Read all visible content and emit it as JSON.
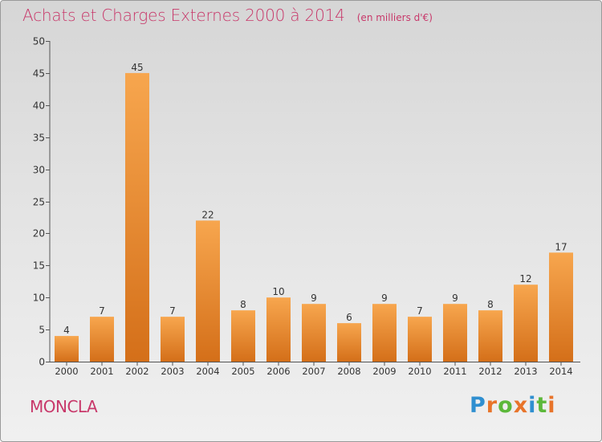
{
  "chart_data": {
    "type": "bar",
    "title": "Achats et Charges Externes 2000 à 2014",
    "subtitle": "(en milliers d'€)",
    "categories": [
      "2000",
      "2001",
      "2002",
      "2003",
      "2004",
      "2005",
      "2006",
      "2007",
      "2008",
      "2009",
      "2010",
      "2011",
      "2012",
      "2013",
      "2014"
    ],
    "values": [
      4,
      7,
      45,
      7,
      22,
      8,
      10,
      9,
      6,
      9,
      7,
      9,
      8,
      12,
      17
    ],
    "ylim": [
      0,
      50
    ],
    "yticks": [
      0,
      5,
      10,
      15,
      20,
      25,
      30,
      35,
      40,
      45,
      50
    ],
    "grid": false,
    "bar_colors": {
      "light": "#f7a64e",
      "dark": "#d46f19"
    }
  },
  "footer": {
    "commune": "MONCLA",
    "logo_text": "Proxiti",
    "logo_colors": [
      "#2f8fd0",
      "#e8742a",
      "#5cb83a",
      "#e8742a",
      "#2f8fd0",
      "#5cb83a",
      "#e8742a"
    ]
  }
}
